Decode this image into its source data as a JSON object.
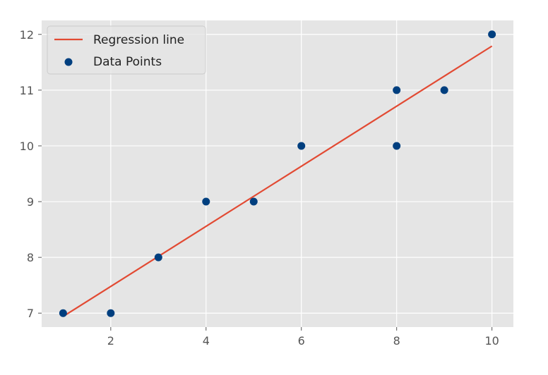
{
  "chart_data": {
    "type": "scatter",
    "style": "ggplot",
    "title": "",
    "xlabel": "",
    "ylabel": "",
    "xlim": [
      0.55,
      10.45
    ],
    "ylim": [
      6.75,
      12.25
    ],
    "x_ticks": [
      2,
      4,
      6,
      8,
      10
    ],
    "y_ticks": [
      7,
      8,
      9,
      10,
      11,
      12
    ],
    "grid": true,
    "legend_position": "top-left",
    "series": [
      {
        "name": "Data Points",
        "kind": "scatter",
        "color": "#003f7f",
        "points": [
          {
            "x": 1,
            "y": 7
          },
          {
            "x": 2,
            "y": 7
          },
          {
            "x": 3,
            "y": 8
          },
          {
            "x": 4,
            "y": 9
          },
          {
            "x": 5,
            "y": 9
          },
          {
            "x": 6,
            "y": 10
          },
          {
            "x": 8,
            "y": 11
          },
          {
            "x": 8,
            "y": 10
          },
          {
            "x": 9,
            "y": 11
          },
          {
            "x": 10,
            "y": 12
          }
        ]
      },
      {
        "name": "Regression line",
        "kind": "line",
        "color": "#e24a33",
        "points": [
          {
            "x": 1,
            "y": 6.94
          },
          {
            "x": 10,
            "y": 11.79
          }
        ]
      }
    ]
  }
}
